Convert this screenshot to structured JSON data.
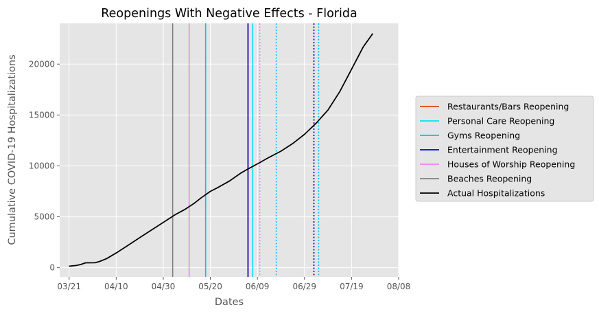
{
  "chart_data": {
    "type": "line",
    "title": "Reopenings With Negative Effects - Florida",
    "xlabel": "Dates",
    "ylabel": "Cumulative COVID-19 Hospitalizations",
    "year": 2020,
    "xlim": [
      "2020-03-17",
      "2020-08-08"
    ],
    "ylim": [
      -900,
      24000
    ],
    "x_ticks": [
      {
        "date": "2020-03-21",
        "label": "03/21"
      },
      {
        "date": "2020-04-10",
        "label": "04/10"
      },
      {
        "date": "2020-04-30",
        "label": "04/30"
      },
      {
        "date": "2020-05-20",
        "label": "05/20"
      },
      {
        "date": "2020-06-09",
        "label": "06/09"
      },
      {
        "date": "2020-06-29",
        "label": "06/29"
      },
      {
        "date": "2020-07-19",
        "label": "07/19"
      },
      {
        "date": "2020-08-08",
        "label": "08/08"
      }
    ],
    "y_ticks": [
      0,
      5000,
      10000,
      15000,
      20000
    ],
    "grid": true,
    "legend_position": "right, outside plot",
    "series": [
      {
        "name": "Actual Hospitalizations",
        "color": "#000000",
        "style": "solid",
        "points": [
          [
            "2020-03-21",
            150
          ],
          [
            "2020-03-24",
            220
          ],
          [
            "2020-03-26",
            320
          ],
          [
            "2020-03-28",
            480
          ],
          [
            "2020-04-01",
            490
          ],
          [
            "2020-04-03",
            620
          ],
          [
            "2020-04-06",
            900
          ],
          [
            "2020-04-10",
            1450
          ],
          [
            "2020-04-15",
            2200
          ],
          [
            "2020-04-20",
            2950
          ],
          [
            "2020-04-25",
            3700
          ],
          [
            "2020-04-30",
            4450
          ],
          [
            "2020-05-05",
            5200
          ],
          [
            "2020-05-09",
            5700
          ],
          [
            "2020-05-13",
            6300
          ],
          [
            "2020-05-16",
            6850
          ],
          [
            "2020-05-20",
            7500
          ],
          [
            "2020-05-23",
            7850
          ],
          [
            "2020-05-28",
            8500
          ],
          [
            "2020-06-02",
            9300
          ],
          [
            "2020-06-05",
            9700
          ],
          [
            "2020-06-09",
            10200
          ],
          [
            "2020-06-14",
            10850
          ],
          [
            "2020-06-19",
            11450
          ],
          [
            "2020-06-24",
            12200
          ],
          [
            "2020-06-29",
            13100
          ],
          [
            "2020-07-04",
            14200
          ],
          [
            "2020-07-09",
            15500
          ],
          [
            "2020-07-14",
            17300
          ],
          [
            "2020-07-19",
            19500
          ],
          [
            "2020-07-24",
            21700
          ],
          [
            "2020-07-28",
            23000
          ]
        ]
      }
    ],
    "legend": [
      {
        "name": "Restaurants/Bars Reopening",
        "color": "#e8440c"
      },
      {
        "name": "Personal Care Reopening",
        "color": "#00e5ee"
      },
      {
        "name": "Gyms Reopening",
        "color": "#00bfff"
      },
      {
        "name": "Entertainment Reopening",
        "color": "#0000cd"
      },
      {
        "name": "Houses of Worship Reopening",
        "color": "#ee82ee"
      },
      {
        "name": "Beaches Reopening",
        "color": "#808080"
      },
      {
        "name": "Actual Hospitalizations",
        "color": "#000000"
      }
    ],
    "reopening_lines": [
      {
        "name": "Beaches Reopening",
        "date": "2020-05-04",
        "color": "#808080",
        "style": "solid"
      },
      {
        "name": "Houses of Worship Reopening",
        "date": "2020-05-11",
        "color": "#ee82ee",
        "style": "solid"
      },
      {
        "name": "Gyms Reopening",
        "date": "2020-05-18",
        "color": "#00bfff",
        "style": "solid"
      },
      {
        "name": "Restaurants/Bars Reopening",
        "date": "2020-06-05",
        "color": "#e8440c",
        "style": "solid"
      },
      {
        "name": "Entertainment Reopening",
        "date": "2020-06-05",
        "color": "#0000cd",
        "style": "solid"
      },
      {
        "name": "Personal Care Reopening",
        "date": "2020-06-07",
        "color": "#00e5ee",
        "style": "solid"
      },
      {
        "name": "Houses of Worship Reopening",
        "date": "2020-06-10",
        "color": "#ee82ee",
        "style": "dotted"
      },
      {
        "name": "Gyms Reopening",
        "date": "2020-06-17",
        "color": "#00bfff",
        "style": "dotted"
      },
      {
        "name": "Restaurants/Bars Reopening",
        "date": "2020-07-03",
        "color": "#e8440c",
        "style": "dotted"
      },
      {
        "name": "Entertainment Reopening",
        "date": "2020-07-03",
        "color": "#0000cd",
        "style": "dotted"
      },
      {
        "name": "Personal Care Reopening",
        "date": "2020-07-05",
        "color": "#00e5ee",
        "style": "dotted"
      },
      {
        "name": "Gyms Reopening",
        "date": "2020-07-05",
        "color": "#00bfff",
        "style": "dotted"
      }
    ]
  }
}
